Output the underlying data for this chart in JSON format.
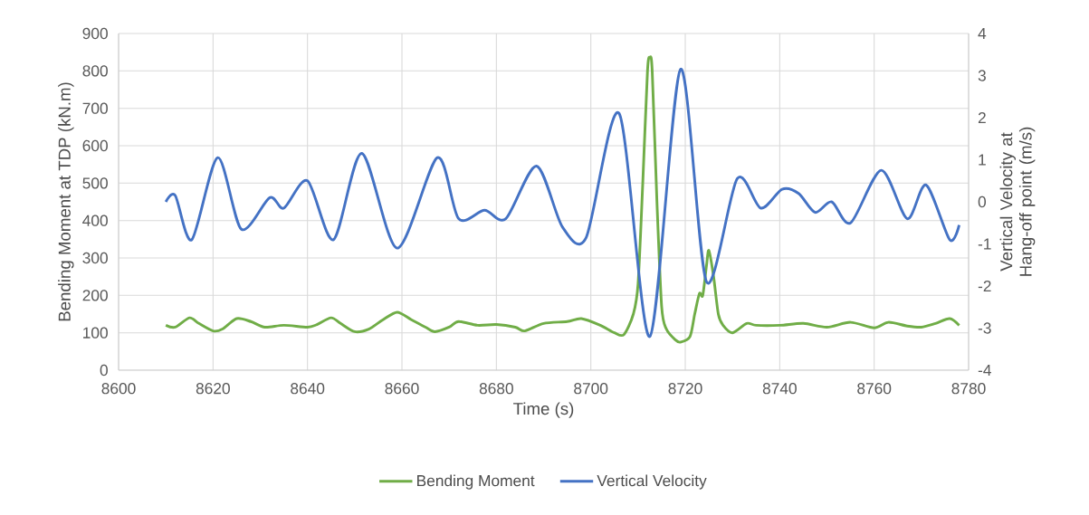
{
  "chart_data": {
    "type": "line",
    "xlabel": "Time (s)",
    "ylabel": "Bending Moment at TDP  (kN.m)",
    "y2label": "Vertical Velocity  at Hang-off point (m/s)",
    "xlim": [
      8600,
      8780
    ],
    "xticks": [
      8600,
      8620,
      8640,
      8660,
      8680,
      8700,
      8720,
      8740,
      8760,
      8780
    ],
    "ylim": [
      0,
      900
    ],
    "yticks": [
      0,
      100,
      200,
      300,
      400,
      500,
      600,
      700,
      800,
      900
    ],
    "y2lim": [
      -4,
      4
    ],
    "y2ticks": [
      -4,
      -3,
      -2,
      -1,
      0,
      1,
      2,
      3,
      4
    ],
    "grid": true,
    "legend": "bottom",
    "series": [
      {
        "name": "Bending Moment",
        "color": "#70ad47",
        "axis": "y",
        "x": [
          8610,
          8612,
          8615,
          8617,
          8620,
          8622,
          8625,
          8628,
          8631,
          8635,
          8640,
          8642,
          8645,
          8647,
          8650,
          8653,
          8656,
          8659,
          8662,
          8665,
          8667,
          8670,
          8672,
          8676,
          8680,
          8684,
          8686,
          8690,
          8695,
          8698,
          8702,
          8705,
          8707,
          8709,
          8710,
          8711,
          8712,
          8712.5,
          8713,
          8714,
          8715,
          8716,
          8718,
          8719,
          8721,
          8722,
          8723,
          8723.7,
          8724.5,
          8725,
          8726,
          8727,
          8728,
          8730,
          8733,
          8735,
          8740,
          8745,
          8750,
          8755,
          8760,
          8763,
          8767,
          8770,
          8773,
          8776,
          8778
        ],
        "values": [
          120,
          115,
          140,
          125,
          105,
          110,
          138,
          130,
          115,
          120,
          115,
          122,
          140,
          125,
          103,
          110,
          135,
          155,
          135,
          115,
          103,
          115,
          130,
          120,
          122,
          115,
          105,
          125,
          130,
          138,
          120,
          100,
          95,
          150,
          230,
          500,
          800,
          835,
          800,
          450,
          170,
          110,
          80,
          75,
          90,
          150,
          205,
          200,
          280,
          320,
          250,
          150,
          120,
          100,
          125,
          120,
          120,
          125,
          115,
          128,
          113,
          128,
          118,
          115,
          125,
          138,
          120
        ]
      },
      {
        "name": "Vertical Velocity",
        "color": "#4472c4",
        "axis": "y2",
        "x": [
          8610,
          8612,
          8615.5,
          8621,
          8626,
          8632,
          8635,
          8640,
          8645.5,
          8651.5,
          8659,
          8667.5,
          8672,
          8677.5,
          8682,
          8688.5,
          8694,
          8699,
          8706,
          8712.5,
          8719,
          8724.5,
          8731,
          8736,
          8740.5,
          8744,
          8747.5,
          8751,
          8755,
          8761.5,
          8767,
          8771,
          8776,
          8778
        ],
        "values": [
          0.0,
          0.15,
          -0.9,
          1.05,
          -0.65,
          0.1,
          -0.15,
          0.5,
          -0.9,
          1.15,
          -1.1,
          1.05,
          -0.4,
          -0.2,
          -0.4,
          0.85,
          -0.6,
          -0.85,
          2.1,
          -3.2,
          3.15,
          -1.9,
          0.55,
          -0.15,
          0.3,
          0.2,
          -0.25,
          0.0,
          -0.5,
          0.75,
          -0.4,
          0.4,
          -0.9,
          -0.55
        ]
      }
    ]
  }
}
